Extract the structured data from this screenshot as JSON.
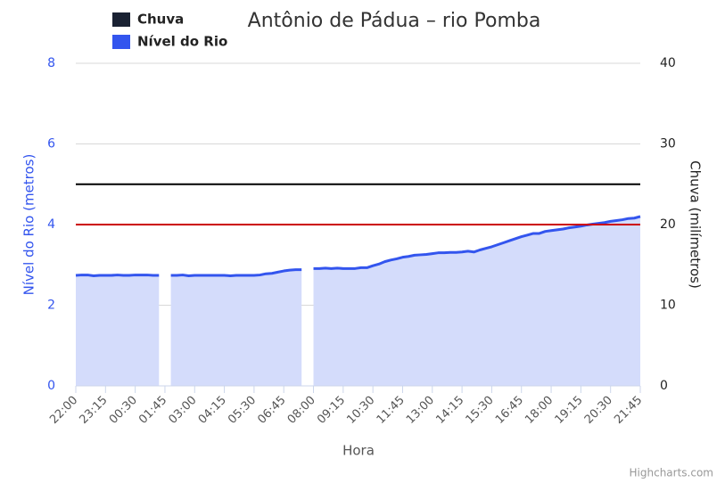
{
  "chart_data": {
    "type": "line",
    "title": "Antônio de Pádua – rio Pomba",
    "x_label": "Hora",
    "y_label": "Nível do Rio (metros)",
    "y2_label": "Chuva (milímetros)",
    "credits": "Highcharts.com",
    "ylim": [
      0,
      8
    ],
    "yticks": [
      0,
      2,
      4,
      6,
      8
    ],
    "y2lim": [
      0,
      40
    ],
    "y2ticks": [
      0,
      10,
      20,
      30,
      40
    ],
    "grid": true,
    "legend": "top-left",
    "plot_lines": [
      {
        "value": 5,
        "color": "#000000"
      },
      {
        "value": 4,
        "color": "#cc0000"
      }
    ],
    "categories": [
      "22:00",
      null,
      null,
      null,
      null,
      "23:15",
      null,
      null,
      null,
      null,
      "00:30",
      null,
      null,
      null,
      null,
      "01:45",
      null,
      null,
      null,
      null,
      "03:00",
      null,
      null,
      null,
      null,
      "04:15",
      null,
      null,
      null,
      null,
      "05:30",
      null,
      null,
      null,
      null,
      "06:45",
      null,
      null,
      null,
      null,
      "08:00",
      null,
      null,
      null,
      null,
      "09:15",
      null,
      null,
      null,
      null,
      "10:30",
      null,
      null,
      null,
      null,
      "11:45",
      null,
      null,
      null,
      null,
      "13:00",
      null,
      null,
      null,
      null,
      "14:15",
      null,
      null,
      null,
      null,
      "15:30",
      null,
      null,
      null,
      null,
      "16:45",
      null,
      null,
      null,
      null,
      "18:00",
      null,
      null,
      null,
      null,
      "19:15",
      null,
      null,
      null,
      null,
      "20:30",
      null,
      null,
      null,
      null,
      "21:45"
    ],
    "series": [
      {
        "name": "Chuva",
        "color": "#1a2233",
        "axis": "y2"
      },
      {
        "name": "Nível do Rio",
        "color": "#3355ee",
        "fill": "#d4dcfb",
        "values": [
          2.74,
          2.75,
          2.75,
          2.73,
          2.74,
          2.74,
          2.74,
          2.75,
          2.74,
          2.74,
          2.75,
          2.75,
          2.75,
          2.74,
          2.74,
          null,
          2.74,
          2.74,
          2.75,
          2.73,
          2.74,
          2.74,
          2.74,
          2.74,
          2.74,
          2.74,
          2.73,
          2.74,
          2.74,
          2.74,
          2.74,
          2.75,
          2.78,
          2.79,
          2.82,
          2.85,
          2.87,
          2.88,
          2.88,
          null,
          2.91,
          2.91,
          2.92,
          2.91,
          2.92,
          2.91,
          2.91,
          2.91,
          2.93,
          2.93,
          2.98,
          3.02,
          3.08,
          3.12,
          3.15,
          3.19,
          3.21,
          3.24,
          3.25,
          3.26,
          3.28,
          3.3,
          3.3,
          3.31,
          3.31,
          3.32,
          3.34,
          3.32,
          3.37,
          3.41,
          3.45,
          3.5,
          3.55,
          3.6,
          3.65,
          3.7,
          3.74,
          3.78,
          3.78,
          3.83,
          3.85,
          3.87,
          3.89,
          3.92,
          3.94,
          3.96,
          3.99,
          4.01,
          4.03,
          4.05,
          4.08,
          4.1,
          4.12,
          4.15,
          4.16,
          4.2
        ]
      }
    ]
  }
}
